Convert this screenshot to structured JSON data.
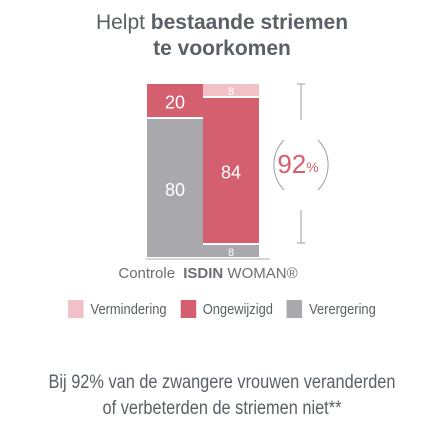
{
  "title": {
    "line1_plain": "Helpt ",
    "line1_bold": "bestaande striemen",
    "line2_bold": "te voorkomen"
  },
  "chart_data": {
    "type": "bar",
    "stacked": true,
    "categories": [
      "Controle",
      "ISDIN WOMAN®"
    ],
    "series": [
      {
        "name": "Vermindering",
        "color": "#f2c1c8",
        "values": [
          0,
          8
        ]
      },
      {
        "name": "Ongewijzigd",
        "color": "#d4606f",
        "values": [
          20,
          84
        ]
      },
      {
        "name": "Verergering",
        "color": "#a9a9ad",
        "values": [
          80,
          8
        ]
      }
    ],
    "highlight": {
      "value": "92",
      "unit": "%"
    },
    "x_labels": {
      "control": "Controle",
      "brand_bold": "ISDIN",
      "brand_rest": " WOMAN®"
    }
  },
  "legend": [
    {
      "label": "Vermindering",
      "color": "#f2c1c8"
    },
    {
      "label": "Ongewijzigd",
      "color": "#d4606f"
    },
    {
      "label": "Verergering",
      "color": "#a9a9ad"
    }
  ],
  "footnote": {
    "line1": "Bij 92% van de zwangere vrouwen veranderden",
    "line2": "of verbeterden de striemen niet**"
  }
}
